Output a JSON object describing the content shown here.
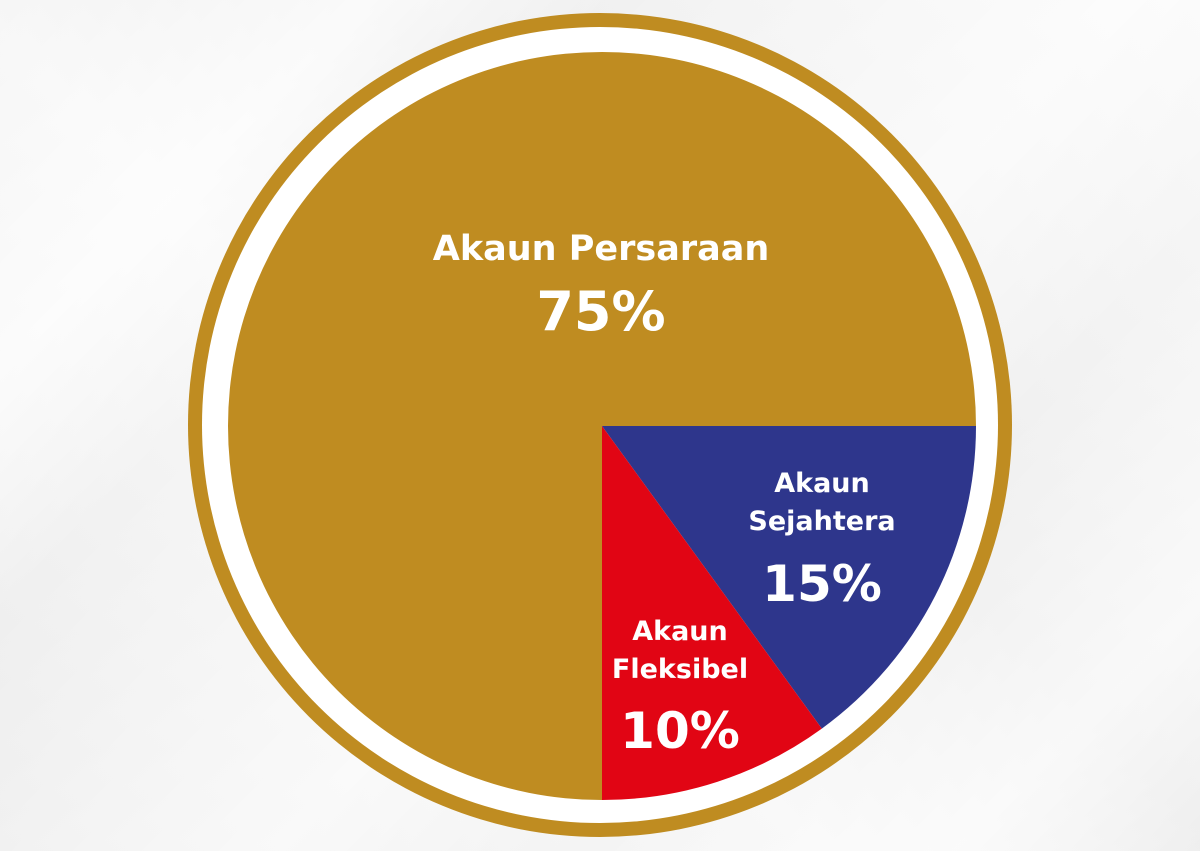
{
  "chart_data": {
    "type": "pie",
    "start": "3 o'clock, clockwise",
    "slices": [
      {
        "label_lines": [
          "Akaun",
          "Sejahtera"
        ],
        "value": 15,
        "value_label": "15%",
        "color": "#2e368c"
      },
      {
        "label_lines": [
          "Akaun",
          "Fleksibel"
        ],
        "value": 10,
        "value_label": "10%",
        "color": "#e10514"
      },
      {
        "label_lines": [
          "Akaun Persaraan"
        ],
        "value": 75,
        "value_label": "75%",
        "color": "#bf8c21"
      }
    ],
    "ring_colors": {
      "outer": "#bf8c21",
      "gap": "#ffffff"
    }
  }
}
